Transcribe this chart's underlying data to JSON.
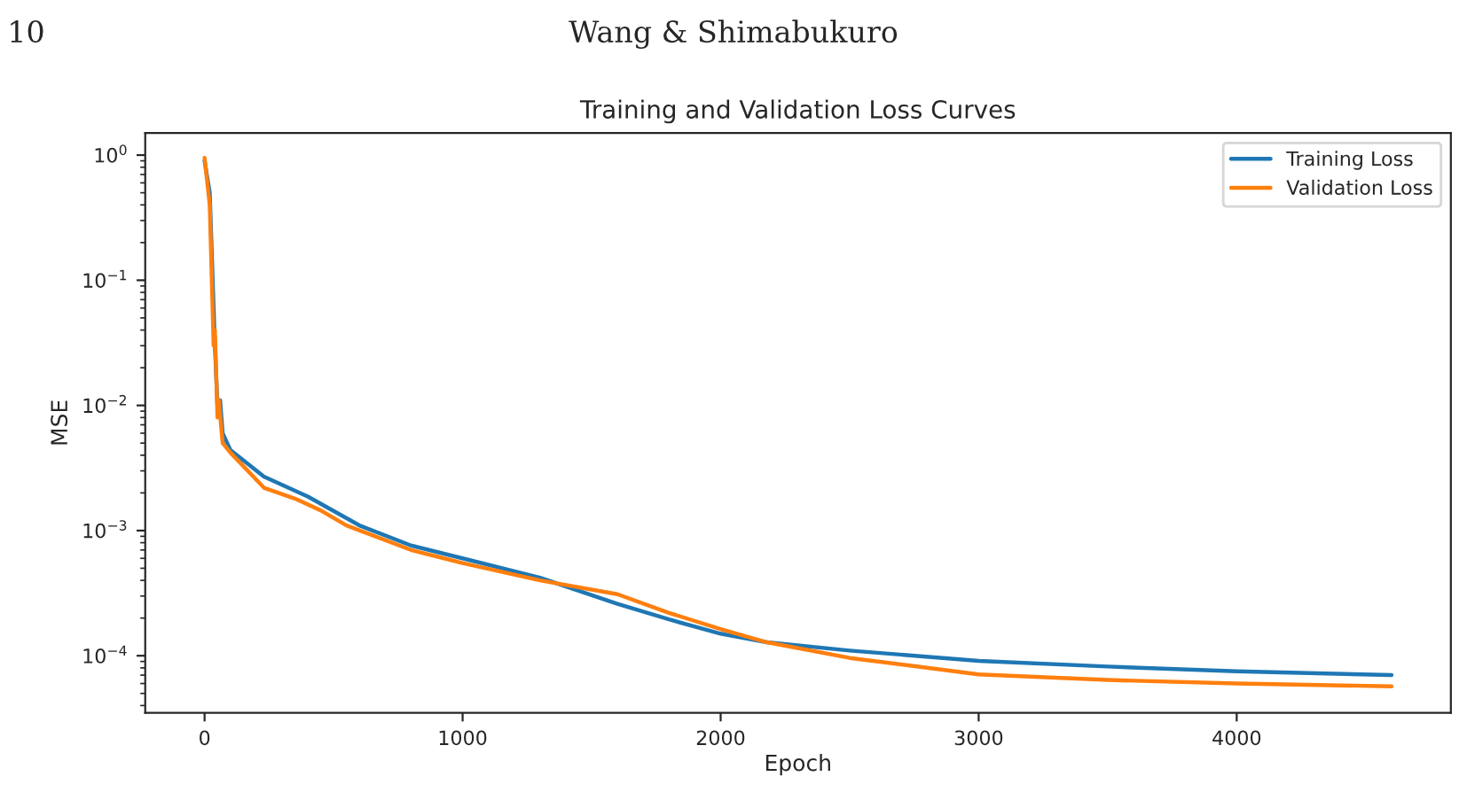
{
  "chart_data": {
    "type": "line",
    "title": "Training and Validation Loss Curves",
    "xlabel": "Epoch",
    "ylabel": "MSE",
    "annotations": [
      "10",
      "Wang & Shimabukuro"
    ],
    "log": "y",
    "grid": false,
    "legend": "top right",
    "line_style": "solid",
    "marker": "none",
    "xlim": [
      -230,
      4830
    ],
    "xticks": [
      0,
      1000,
      2000,
      3000,
      4000
    ],
    "ylim": [
      3.5e-05,
      1.5
    ],
    "yticks": [
      {
        "value": 0.0001,
        "label": "10$^{−4}$"
      },
      {
        "value": 0.001,
        "label": "10$^{−3}$"
      },
      {
        "value": 0.01,
        "label": "10$^{−2}$"
      },
      {
        "value": 0.1,
        "label": "10$^{−1}$"
      },
      {
        "value": 1,
        "label": "10$^{0}$"
      }
    ],
    "series": [
      {
        "name": "Training Loss",
        "color": "#1f77b4",
        "x": [
          0,
          20,
          40,
          50,
          60,
          70,
          100,
          230,
          400,
          600,
          800,
          1000,
          1300,
          1600,
          1800,
          2000,
          2180,
          2500,
          3000,
          3500,
          4000,
          4600
        ],
        "values": [
          0.9,
          0.5,
          0.03,
          0.01,
          0.011,
          0.006,
          0.0044,
          0.0027,
          0.00187,
          0.0011,
          0.00076,
          0.0006,
          0.00042,
          0.00026,
          0.000195,
          0.00015,
          0.000128,
          0.00011,
          9.1e-05,
          8.2e-05,
          7.5e-05,
          7e-05
        ]
      },
      {
        "name": "Validation Loss",
        "color": "#ff7f0e",
        "x": [
          0,
          20,
          35,
          40,
          50,
          55,
          65,
          70,
          100,
          230,
          350,
          450,
          550,
          800,
          1000,
          1300,
          1600,
          1800,
          2000,
          2180,
          2500,
          3000,
          3500,
          4000,
          4600
        ],
        "values": [
          0.95,
          0.4,
          0.03,
          0.04,
          0.008,
          0.011,
          0.0065,
          0.005,
          0.0042,
          0.0022,
          0.0018,
          0.00145,
          0.0011,
          0.0007,
          0.00055,
          0.0004,
          0.00031,
          0.00022,
          0.000163,
          0.000128,
          9.6e-05,
          7.1e-05,
          6.4e-05,
          6e-05,
          5.7e-05
        ]
      }
    ]
  }
}
